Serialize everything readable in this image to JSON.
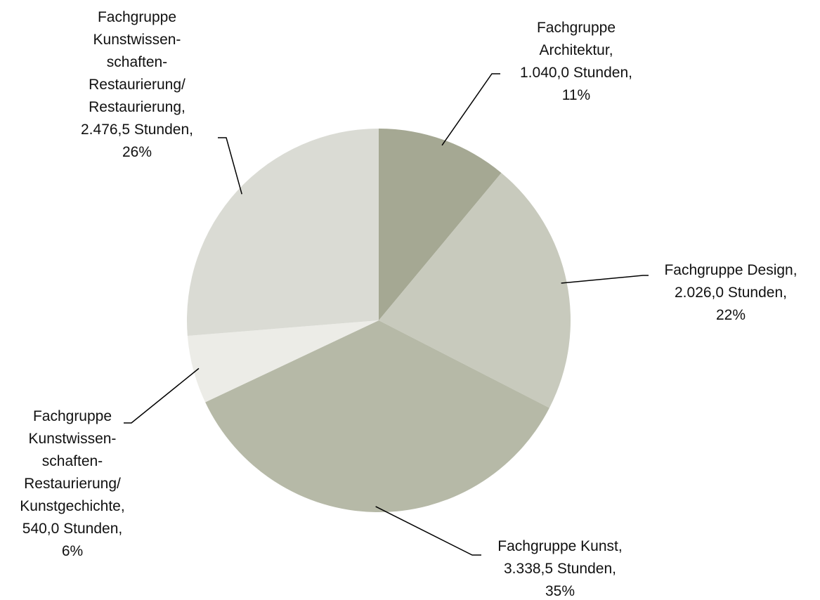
{
  "chart_data": {
    "type": "pie",
    "categories": [
      "Fachgruppe\nArchitektur",
      "Fachgruppe Design",
      "Fachgruppe Kunst",
      "Fachgruppe\nKunstwissen-\nschaften-\nRestaurierung/\nKunstgechichte",
      "Fachgruppe\nKunstwissen-\nschaften-\nRestaurierung/\nRestaurierung"
    ],
    "values": [
      1040.0,
      2026.0,
      3338.5,
      540.0,
      2476.5
    ],
    "value_labels": [
      "1.040,0 Stunden",
      "2.026,0 Stunden",
      "3.338,5 Stunden",
      "540,0 Stunden",
      "2.476,5 Stunden"
    ],
    "percents": [
      11,
      22,
      35,
      6,
      26
    ],
    "percent_labels": [
      "11%",
      "22%",
      "35%",
      "6%",
      "26%"
    ],
    "separator": ",",
    "colors": [
      "#a5a893",
      "#c8cabd",
      "#b6b9a7",
      "#ecece7",
      "#dadbd4"
    ]
  }
}
